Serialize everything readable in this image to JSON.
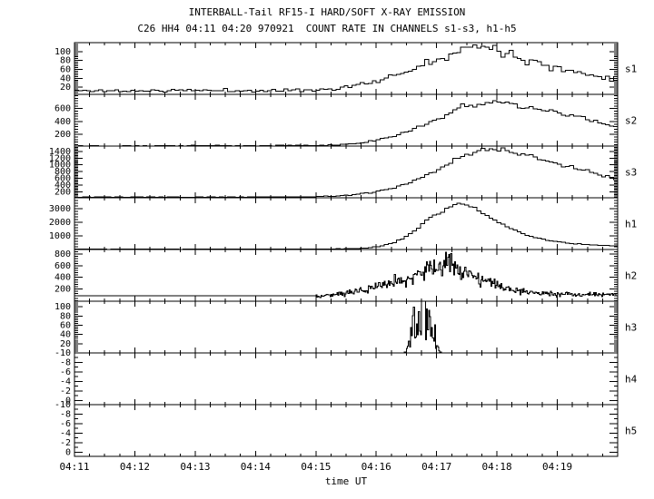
{
  "header": {
    "title": "INTERBALL-Tail RF15-I HARD/SOFT X-RAY EMISSION",
    "subtitle": "C26 HH4 04:11 04:20 970921  COUNT RATE IN CHANNELS s1-s3, h1-h5"
  },
  "chart_data": {
    "type": "line",
    "title": "INTERBALL-Tail RF15-I HARD/SOFT X-RAY EMISSION",
    "subtitle": "C26 HH4 04:11 04:20 970921  COUNT RATE IN CHANNELS s1-s3, h1-h5",
    "style": "stacked step-histogram time-series, black on white, 8 panels sharing one time axis",
    "x_axis": {
      "label": "time UT",
      "start": "04:11",
      "end": "04:20",
      "total_seconds": 540,
      "major_tick_s": 60,
      "minor_tick_s": 15,
      "tick_labels": [
        "04:11",
        "04:12",
        "04:13",
        "04:14",
        "04:15",
        "04:16",
        "04:17",
        "04:18",
        "04:19"
      ]
    },
    "panels": [
      {
        "channel": "s1",
        "ylim": [
          4,
          120
        ],
        "yticks": [
          20,
          40,
          60,
          80,
          100
        ],
        "ytick_minor": 4,
        "bin_s": 4,
        "noise": {
          "mode": "gauss",
          "sigma0": 1.2,
          "rel": 0.04,
          "start": 0,
          "seed": 11
        },
        "points": [
          [
            0,
            12
          ],
          [
            60,
            12
          ],
          [
            120,
            13
          ],
          [
            180,
            12
          ],
          [
            240,
            14
          ],
          [
            260,
            17
          ],
          [
            280,
            24
          ],
          [
            300,
            33
          ],
          [
            315,
            44
          ],
          [
            330,
            56
          ],
          [
            345,
            70
          ],
          [
            360,
            84
          ],
          [
            372,
            95
          ],
          [
            382,
            103
          ],
          [
            392,
            109
          ],
          [
            402,
            113
          ],
          [
            412,
            110
          ],
          [
            422,
            104
          ],
          [
            435,
            95
          ],
          [
            450,
            83
          ],
          [
            465,
            72
          ],
          [
            480,
            62
          ],
          [
            495,
            55
          ],
          [
            510,
            49
          ],
          [
            525,
            44
          ],
          [
            540,
            40
          ]
        ]
      },
      {
        "channel": "s2",
        "ylim": [
          20,
          820
        ],
        "yticks": [
          200,
          400,
          600
        ],
        "ytick_minor": 40,
        "bin_s": 4,
        "noise": {
          "mode": "gauss",
          "sigma0": 3,
          "rel": 0.03,
          "start": 0,
          "seed": 22
        },
        "points": [
          [
            0,
            26
          ],
          [
            120,
            26
          ],
          [
            240,
            30
          ],
          [
            255,
            36
          ],
          [
            270,
            48
          ],
          [
            285,
            70
          ],
          [
            300,
            105
          ],
          [
            315,
            160
          ],
          [
            330,
            235
          ],
          [
            345,
            330
          ],
          [
            360,
            430
          ],
          [
            372,
            520
          ],
          [
            382,
            590
          ],
          [
            392,
            645
          ],
          [
            402,
            685
          ],
          [
            412,
            700
          ],
          [
            422,
            692
          ],
          [
            432,
            675
          ],
          [
            445,
            645
          ],
          [
            460,
            600
          ],
          [
            475,
            550
          ],
          [
            490,
            500
          ],
          [
            505,
            450
          ],
          [
            520,
            395
          ],
          [
            530,
            350
          ],
          [
            540,
            310
          ]
        ]
      },
      {
        "channel": "s3",
        "ylim": [
          20,
          1560
        ],
        "yticks": [
          200,
          400,
          600,
          800,
          1000,
          1200,
          1400
        ],
        "ytick_minor": 40,
        "bin_s": 4,
        "noise": {
          "mode": "gauss",
          "sigma0": 5,
          "rel": 0.02,
          "start": 0,
          "seed": 33
        },
        "points": [
          [
            0,
            38
          ],
          [
            120,
            40
          ],
          [
            240,
            48
          ],
          [
            260,
            70
          ],
          [
            280,
            115
          ],
          [
            300,
            195
          ],
          [
            315,
            300
          ],
          [
            330,
            440
          ],
          [
            345,
            620
          ],
          [
            360,
            830
          ],
          [
            372,
            1020
          ],
          [
            382,
            1180
          ],
          [
            392,
            1310
          ],
          [
            402,
            1400
          ],
          [
            412,
            1445
          ],
          [
            422,
            1440
          ],
          [
            432,
            1400
          ],
          [
            445,
            1320
          ],
          [
            460,
            1200
          ],
          [
            475,
            1070
          ],
          [
            490,
            950
          ],
          [
            505,
            840
          ],
          [
            520,
            730
          ],
          [
            530,
            640
          ],
          [
            540,
            560
          ]
        ]
      },
      {
        "channel": "h1",
        "ylim": [
          0,
          3800
        ],
        "yticks": [
          1000,
          2000,
          3000
        ],
        "ytick_minor": 200,
        "bin_s": 4,
        "noise": {
          "mode": "gauss",
          "sigma0": 6,
          "rel": 0.015,
          "start": 0,
          "seed": 44
        },
        "points": [
          [
            0,
            25
          ],
          [
            200,
            28
          ],
          [
            255,
            32
          ],
          [
            275,
            55
          ],
          [
            290,
            110
          ],
          [
            305,
            250
          ],
          [
            318,
            520
          ],
          [
            328,
            850
          ],
          [
            338,
            1350
          ],
          [
            346,
            1900
          ],
          [
            352,
            2300
          ],
          [
            357,
            2500
          ],
          [
            361,
            2560
          ],
          [
            365,
            2700
          ],
          [
            370,
            2980
          ],
          [
            376,
            3220
          ],
          [
            382,
            3340
          ],
          [
            388,
            3300
          ],
          [
            394,
            3160
          ],
          [
            402,
            2880
          ],
          [
            410,
            2520
          ],
          [
            420,
            2080
          ],
          [
            430,
            1680
          ],
          [
            440,
            1330
          ],
          [
            450,
            1060
          ],
          [
            460,
            850
          ],
          [
            470,
            690
          ],
          [
            482,
            550
          ],
          [
            495,
            445
          ],
          [
            510,
            360
          ],
          [
            525,
            300
          ],
          [
            540,
            255
          ]
        ]
      },
      {
        "channel": "h2",
        "ylim": [
          -10,
          880
        ],
        "yticks": [
          200,
          400,
          600,
          800
        ],
        "ytick_minor": 40,
        "bin_s": 1,
        "noise": {
          "mode": "gauss",
          "sigma0": 0,
          "rel": 0.16,
          "start": 240,
          "seed": 55
        },
        "points": [
          [
            0,
            80
          ],
          [
            240,
            80
          ],
          [
            248,
            88
          ],
          [
            256,
            100
          ],
          [
            264,
            115
          ],
          [
            272,
            135
          ],
          [
            282,
            165
          ],
          [
            292,
            205
          ],
          [
            302,
            255
          ],
          [
            312,
            300
          ],
          [
            320,
            330
          ],
          [
            328,
            355
          ],
          [
            336,
            395
          ],
          [
            344,
            470
          ],
          [
            352,
            550
          ],
          [
            358,
            610
          ],
          [
            364,
            590
          ],
          [
            370,
            640
          ],
          [
            376,
            600
          ],
          [
            382,
            540
          ],
          [
            388,
            490
          ],
          [
            394,
            440
          ],
          [
            400,
            400
          ],
          [
            406,
            360
          ],
          [
            412,
            325
          ],
          [
            418,
            290
          ],
          [
            424,
            250
          ],
          [
            430,
            215
          ],
          [
            438,
            180
          ],
          [
            446,
            155
          ],
          [
            456,
            135
          ],
          [
            468,
            120
          ],
          [
            482,
            112
          ],
          [
            500,
            108
          ],
          [
            540,
            105
          ]
        ]
      },
      {
        "channel": "h3",
        "ylim": [
          0,
          112
        ],
        "yticks": [
          20,
          40,
          60,
          80,
          100
        ],
        "ytick_minor": 4,
        "bin_s": 1,
        "noise": {
          "mode": "spike",
          "sigma0": 0,
          "rel": 0.85,
          "start": 0,
          "seed": 66
        },
        "points": [
          [
            0,
            0
          ],
          [
            325,
            0
          ],
          [
            330,
            2
          ],
          [
            333,
            18
          ],
          [
            336,
            38
          ],
          [
            339,
            55
          ],
          [
            341,
            48
          ],
          [
            343,
            62
          ],
          [
            345,
            75
          ],
          [
            347,
            86
          ],
          [
            349,
            64
          ],
          [
            351,
            42
          ],
          [
            353,
            56
          ],
          [
            355,
            62
          ],
          [
            357,
            46
          ],
          [
            359,
            28
          ],
          [
            361,
            12
          ],
          [
            363,
            3
          ],
          [
            366,
            0
          ],
          [
            540,
            0
          ]
        ]
      },
      {
        "channel": "h4",
        "ylim": [
          0.9,
          -10
        ],
        "yticks": [
          -10,
          -8,
          -6,
          -4,
          -2,
          0
        ],
        "ytick_minor": 1,
        "bin_s": 4,
        "noise": {
          "mode": "gauss",
          "sigma0": 0,
          "rel": 0,
          "start": 0,
          "seed": 77
        },
        "points": []
      },
      {
        "channel": "h5",
        "ylim": [
          0.9,
          -10
        ],
        "yticks": [
          -10,
          -8,
          -6,
          -4,
          -2,
          0
        ],
        "ytick_minor": 1,
        "bin_s": 4,
        "noise": {
          "mode": "gauss",
          "sigma0": 0,
          "rel": 0,
          "start": 0,
          "seed": 88
        },
        "points": []
      }
    ],
    "legend": "none",
    "grid": "off",
    "colors": {
      "foreground": "#000000",
      "background": "#ffffff"
    }
  }
}
